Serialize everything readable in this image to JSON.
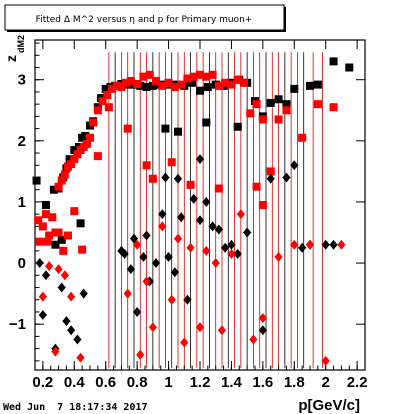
{
  "chart_data": {
    "type": "scatter",
    "title": "Fitted Δ M^2 versus η and p for Primary muon+",
    "xlabel": "p[GeV/c]",
    "ylabel": "z",
    "ylabel_sub": "dM2",
    "xlim": [
      0.15,
      2.25
    ],
    "ylim": [
      -1.75,
      3.65
    ],
    "xticks": [
      0.2,
      0.4,
      0.6,
      0.8,
      1.0,
      1.2,
      1.4,
      1.6,
      1.8,
      2.0,
      2.2
    ],
    "xtick_labels": [
      "0.2",
      "0.4",
      "0.6",
      "0.8",
      "1",
      "1.2",
      "1.4",
      "1.6",
      "1.8",
      "2",
      "2.2"
    ],
    "yticks": [
      -1,
      0,
      1,
      2,
      3
    ],
    "ytick_labels": [
      "−1",
      "0",
      "1",
      "2",
      "3"
    ],
    "grid": false,
    "legend": "none",
    "timestamp": "Wed Jun  7 18:17:34 2017",
    "colors": {
      "red": "#ff0000",
      "black": "#000000",
      "errbar_red": "#cc0000"
    },
    "series": [
      {
        "marker": "square",
        "color": "black",
        "points": [
          [
            0.16,
            1.35
          ],
          [
            0.22,
            0.95
          ],
          [
            0.27,
            1.2
          ],
          [
            0.3,
            1.22
          ],
          [
            0.33,
            1.4
          ],
          [
            0.37,
            1.7
          ],
          [
            0.4,
            1.85
          ],
          [
            0.43,
            1.9
          ],
          [
            0.45,
            2.05
          ],
          [
            0.47,
            2.08
          ],
          [
            0.5,
            2.25
          ],
          [
            0.52,
            2.32
          ],
          [
            0.55,
            2.55
          ],
          [
            0.57,
            2.7
          ],
          [
            0.6,
            2.85
          ],
          [
            0.63,
            2.88
          ],
          [
            0.66,
            2.9
          ],
          [
            0.7,
            2.93
          ],
          [
            0.74,
            2.92
          ],
          [
            0.78,
            2.92
          ],
          [
            0.82,
            2.9
          ],
          [
            0.86,
            2.88
          ],
          [
            0.9,
            2.9
          ],
          [
            0.95,
            2.92
          ],
          [
            1.0,
            2.92
          ],
          [
            1.05,
            2.92
          ],
          [
            1.1,
            2.9
          ],
          [
            1.15,
            2.95
          ],
          [
            1.2,
            2.82
          ],
          [
            1.25,
            2.88
          ],
          [
            1.3,
            2.92
          ],
          [
            1.35,
            2.9
          ],
          [
            1.4,
            2.95
          ],
          [
            1.45,
            3.0
          ],
          [
            1.5,
            2.95
          ],
          [
            1.55,
            2.65
          ],
          [
            1.6,
            2.4
          ],
          [
            1.65,
            2.62
          ],
          [
            1.7,
            2.68
          ],
          [
            1.75,
            2.6
          ],
          [
            1.8,
            2.85
          ],
          [
            1.9,
            2.9
          ],
          [
            1.95,
            2.92
          ],
          [
            2.05,
            3.3
          ],
          [
            2.15,
            3.2
          ],
          [
            0.35,
            1.55
          ],
          [
            0.44,
            0.65
          ],
          [
            0.48,
            2.02
          ],
          [
            0.28,
            0.3
          ],
          [
            0.32,
            0.38
          ],
          [
            0.98,
            2.2
          ],
          [
            1.06,
            2.15
          ],
          [
            1.24,
            2.3
          ],
          [
            1.44,
            2.23
          ]
        ]
      },
      {
        "marker": "square",
        "color": "red",
        "points": [
          [
            0.17,
            0.7
          ],
          [
            0.18,
            0.35
          ],
          [
            0.2,
            0.6
          ],
          [
            0.22,
            0.8
          ],
          [
            0.24,
            0.45
          ],
          [
            0.26,
            0.75
          ],
          [
            0.28,
            0.5
          ],
          [
            0.3,
            1.25
          ],
          [
            0.32,
            1.35
          ],
          [
            0.34,
            1.45
          ],
          [
            0.36,
            1.58
          ],
          [
            0.38,
            1.62
          ],
          [
            0.4,
            1.7
          ],
          [
            0.42,
            1.78
          ],
          [
            0.44,
            1.85
          ],
          [
            0.46,
            1.9
          ],
          [
            0.48,
            1.95
          ],
          [
            0.5,
            2.05
          ],
          [
            0.52,
            2.3
          ],
          [
            0.55,
            2.5
          ],
          [
            0.58,
            2.65
          ],
          [
            0.61,
            2.75
          ],
          [
            0.64,
            2.85
          ],
          [
            0.67,
            2.9
          ],
          [
            0.7,
            2.88
          ],
          [
            0.73,
            2.95
          ],
          [
            0.76,
            2.98
          ],
          [
            0.8,
            2.93
          ],
          [
            0.84,
            3.05
          ],
          [
            0.88,
            3.08
          ],
          [
            0.92,
            2.98
          ],
          [
            0.96,
            2.9
          ],
          [
            1.0,
            2.95
          ],
          [
            1.04,
            2.88
          ],
          [
            1.08,
            2.92
          ],
          [
            1.12,
            3.02
          ],
          [
            1.16,
            3.05
          ],
          [
            1.2,
            3.08
          ],
          [
            1.24,
            3.05
          ],
          [
            1.28,
            3.08
          ],
          [
            1.32,
            2.9
          ],
          [
            1.36,
            2.95
          ],
          [
            1.4,
            2.92
          ],
          [
            1.44,
            3.0
          ],
          [
            1.48,
            2.95
          ],
          [
            1.52,
            2.45
          ],
          [
            1.56,
            2.6
          ],
          [
            1.6,
            2.35
          ],
          [
            1.65,
            1.5
          ],
          [
            1.7,
            2.35
          ],
          [
            1.75,
            2.5
          ],
          [
            1.85,
            2.05
          ],
          [
            1.95,
            2.6
          ],
          [
            2.05,
            2.55
          ],
          [
            0.74,
            2.2
          ],
          [
            0.86,
            1.6
          ],
          [
            0.9,
            1.38
          ],
          [
            1.02,
            1.65
          ],
          [
            1.14,
            1.28
          ],
          [
            1.32,
            1.22
          ],
          [
            1.56,
            1.25
          ],
          [
            1.6,
            0.95
          ],
          [
            0.62,
            2.55
          ],
          [
            0.55,
            1.75
          ],
          [
            0.36,
            0.45
          ],
          [
            0.4,
            0.85
          ],
          [
            0.45,
            0.22
          ],
          [
            0.3,
            0.5
          ],
          [
            0.33,
            0.2
          ],
          [
            0.23,
            0.35
          ]
        ]
      },
      {
        "marker": "diamond",
        "color": "black",
        "points": [
          [
            0.18,
            0.0
          ],
          [
            0.2,
            -0.85
          ],
          [
            0.22,
            -0.2
          ],
          [
            0.28,
            -1.4
          ],
          [
            0.32,
            -0.4
          ],
          [
            0.35,
            -0.95
          ],
          [
            0.38,
            -1.1
          ],
          [
            0.42,
            -1.25
          ],
          [
            0.46,
            -0.5
          ],
          [
            0.72,
            0.15
          ],
          [
            0.76,
            -0.1
          ],
          [
            0.8,
            -0.8
          ],
          [
            0.84,
            0.1
          ],
          [
            0.88,
            -0.3
          ],
          [
            0.92,
            0.0
          ],
          [
            0.96,
            0.8
          ],
          [
            1.0,
            0.1
          ],
          [
            1.04,
            -0.15
          ],
          [
            1.08,
            0.75
          ],
          [
            1.12,
            -0.6
          ],
          [
            1.16,
            1.05
          ],
          [
            1.2,
            0.7
          ],
          [
            1.24,
            1.0
          ],
          [
            1.28,
            0.6
          ],
          [
            1.32,
            0.55
          ],
          [
            1.36,
            0.25
          ],
          [
            1.4,
            0.3
          ],
          [
            1.44,
            0.15
          ],
          [
            1.5,
            0.5
          ],
          [
            1.6,
            -1.1
          ],
          [
            1.65,
            1.38
          ],
          [
            1.75,
            1.4
          ],
          [
            1.8,
            1.6
          ],
          [
            1.85,
            0.25
          ],
          [
            1.9,
            0.3
          ],
          [
            2.0,
            0.3
          ],
          [
            2.05,
            0.3
          ],
          [
            0.86,
            0.45
          ],
          [
            0.98,
            1.4
          ],
          [
            1.06,
            1.38
          ],
          [
            1.2,
            1.7
          ],
          [
            0.78,
            0.4
          ],
          [
            0.7,
            0.2
          ]
        ]
      },
      {
        "marker": "diamond",
        "color": "red",
        "points": [
          [
            0.2,
            -0.55
          ],
          [
            0.24,
            -0.05
          ],
          [
            0.28,
            -1.45
          ],
          [
            0.3,
            -0.1
          ],
          [
            0.34,
            -0.2
          ],
          [
            0.38,
            -0.55
          ],
          [
            0.44,
            -1.55
          ],
          [
            0.74,
            -0.5
          ],
          [
            0.82,
            -1.5
          ],
          [
            0.86,
            -0.3
          ],
          [
            0.9,
            -1.05
          ],
          [
            0.96,
            0.6
          ],
          [
            1.02,
            -0.6
          ],
          [
            1.06,
            0.4
          ],
          [
            1.1,
            -1.3
          ],
          [
            1.14,
            0.25
          ],
          [
            1.2,
            -1.05
          ],
          [
            1.24,
            0.2
          ],
          [
            1.3,
            0.0
          ],
          [
            1.34,
            -1.1
          ],
          [
            1.4,
            0.15
          ],
          [
            1.46,
            0.8
          ],
          [
            1.54,
            -1.25
          ],
          [
            1.6,
            -0.9
          ],
          [
            1.7,
            0.1
          ],
          [
            1.8,
            0.3
          ],
          [
            1.9,
            0.3
          ],
          [
            2.0,
            -1.6
          ],
          [
            2.1,
            0.3
          ],
          [
            0.8,
            0.3
          ]
        ]
      }
    ],
    "error_bar_x": [
      0.62,
      0.66,
      0.7,
      0.74,
      0.78,
      0.82,
      0.86,
      0.9,
      0.94,
      0.98,
      1.02,
      1.06,
      1.1,
      1.14,
      1.18,
      1.22,
      1.26,
      1.3,
      1.34,
      1.38,
      1.42,
      1.46,
      1.5,
      1.54,
      1.58,
      1.62,
      1.66,
      1.7,
      1.74,
      1.78,
      1.82,
      1.86,
      1.92,
      1.98
    ]
  }
}
